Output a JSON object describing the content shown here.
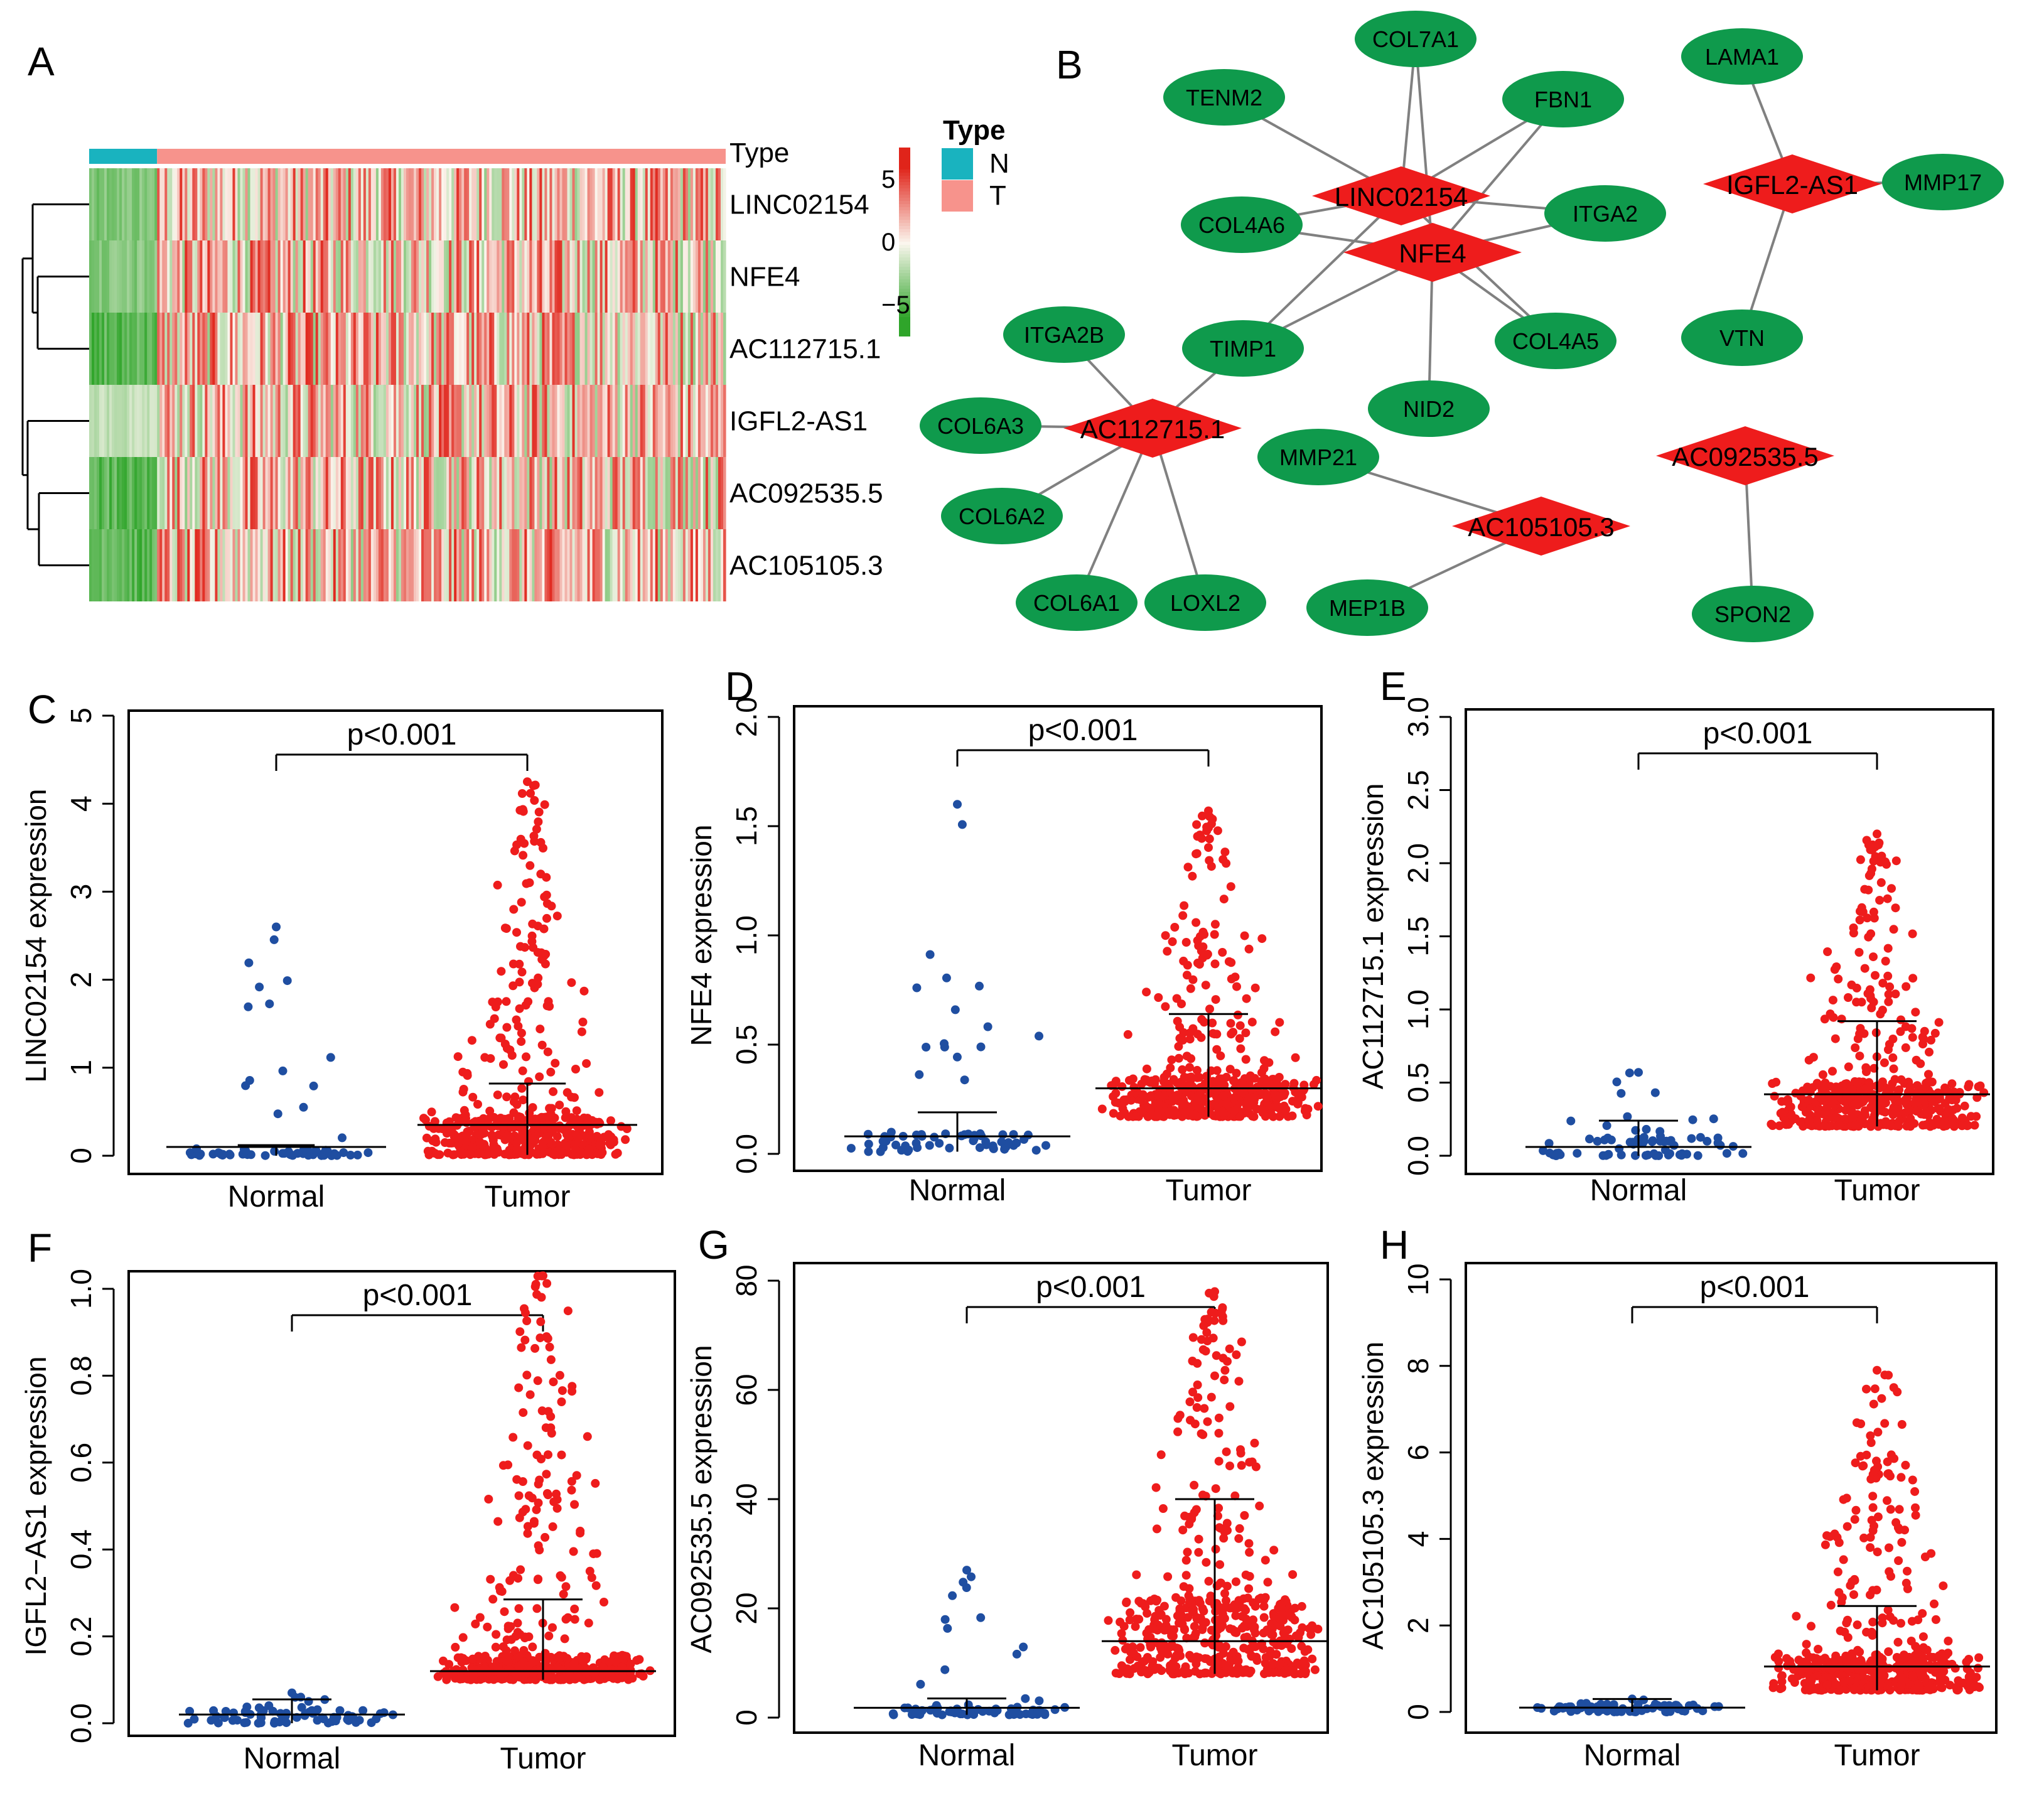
{
  "panel_letters": [
    "A",
    "B",
    "C",
    "D",
    "E",
    "F",
    "G",
    "H"
  ],
  "colors": {
    "normal": "#1f4ea1",
    "tumor": "#ee1c1c",
    "node_green": "#0f9a4c",
    "node_red": "#ee1c1c",
    "edge": "#808080",
    "heat_high": "#e0241a",
    "heat_mid": "#fbf6ee",
    "heat_low": "#2fa52a",
    "type_n": "#19b3bf",
    "type_t": "#f7938c"
  },
  "chart_data": [
    {
      "panel": "A",
      "type": "heatmap",
      "genes": [
        "LINC02154",
        "NFE4",
        "AC112715.1",
        "IGFL2-AS1",
        "AC092535.5",
        "AC105105.3"
      ],
      "annotation_label": "Type",
      "legend_title": "Type",
      "legend_items": [
        "N",
        "T"
      ],
      "colorbar_ticks": [
        "5",
        "0",
        "−5"
      ],
      "colorbar_values": [
        5,
        0,
        -5
      ],
      "n_normal": 27,
      "n_tumor": 226
    },
    {
      "panel": "B",
      "type": "network",
      "hubs": [
        "LINC02154",
        "NFE4",
        "IGFL2-AS1",
        "AC112715.1",
        "AC105105.3",
        "AC092535.5"
      ],
      "targets": [
        "COL7A1",
        "TENM2",
        "FBN1",
        "LAMA1",
        "COL4A6",
        "ITGA2",
        "MMP17",
        "ITGA2B",
        "TIMP1",
        "COL4A5",
        "VTN",
        "COL6A3",
        "NID2",
        "MMP21",
        "COL6A2",
        "COL6A1",
        "LOXL2",
        "MEP1B",
        "SPON2"
      ],
      "edges": [
        [
          "LINC02154",
          "COL7A1"
        ],
        [
          "LINC02154",
          "TENM2"
        ],
        [
          "LINC02154",
          "FBN1"
        ],
        [
          "LINC02154",
          "COL4A6"
        ],
        [
          "LINC02154",
          "ITGA2"
        ],
        [
          "LINC02154",
          "TIMP1"
        ],
        [
          "LINC02154",
          "COL4A5"
        ],
        [
          "NFE4",
          "COL7A1"
        ],
        [
          "NFE4",
          "FBN1"
        ],
        [
          "NFE4",
          "COL4A6"
        ],
        [
          "NFE4",
          "ITGA2"
        ],
        [
          "NFE4",
          "TIMP1"
        ],
        [
          "NFE4",
          "COL4A5"
        ],
        [
          "NFE4",
          "NID2"
        ],
        [
          "IGFL2-AS1",
          "LAMA1"
        ],
        [
          "IGFL2-AS1",
          "MMP17"
        ],
        [
          "IGFL2-AS1",
          "VTN"
        ],
        [
          "AC112715.1",
          "ITGA2B"
        ],
        [
          "AC112715.1",
          "TIMP1"
        ],
        [
          "AC112715.1",
          "COL6A3"
        ],
        [
          "AC112715.1",
          "COL6A2"
        ],
        [
          "AC112715.1",
          "COL6A1"
        ],
        [
          "AC112715.1",
          "LOXL2"
        ],
        [
          "AC105105.3",
          "MMP21"
        ],
        [
          "AC105105.3",
          "MEP1B"
        ],
        [
          "AC092535.5",
          "SPON2"
        ]
      ]
    },
    {
      "panel": "C",
      "type": "scatter",
      "ylabel": "LINC02154 expression",
      "ylim": [
        0,
        5
      ],
      "yticks": [
        0,
        1,
        2,
        3,
        4,
        5
      ],
      "categories": [
        "Normal",
        "Tumor"
      ],
      "pvalue": "p<0.001",
      "normal": {
        "max": 2.6,
        "q3": 0.12,
        "median": 0.04,
        "q1": 0.0,
        "mean": 0.1,
        "n": 70
      },
      "tumor": {
        "max": 4.25,
        "q3": 0.82,
        "median": 0.12,
        "q1": 0.01,
        "mean": 0.35,
        "n": 520
      }
    },
    {
      "panel": "D",
      "type": "scatter",
      "ylabel": "NFE4 expression",
      "ylim": [
        0,
        2
      ],
      "yticks": [
        0.0,
        0.5,
        1.0,
        1.5,
        2.0
      ],
      "categories": [
        "Normal",
        "Tumor"
      ],
      "pvalue": "p<0.001",
      "normal": {
        "max": 1.6,
        "q3": 0.19,
        "median": 0.06,
        "q1": 0.01,
        "mean": 0.08,
        "n": 70
      },
      "tumor": {
        "max": 1.57,
        "q3": 0.64,
        "median": 0.3,
        "q1": 0.17,
        "mean": 0.3,
        "n": 520
      }
    },
    {
      "panel": "E",
      "type": "scatter",
      "ylabel": "AC112715.1 expression",
      "ylim": [
        0,
        3
      ],
      "yticks": [
        0.0,
        0.5,
        1.0,
        1.5,
        2.0,
        2.5,
        3.0
      ],
      "categories": [
        "Normal",
        "Tumor"
      ],
      "pvalue": "p<0.001",
      "normal": {
        "max": 0.57,
        "q3": 0.24,
        "median": 0.1,
        "q1": 0.0,
        "mean": 0.06,
        "n": 70
      },
      "tumor": {
        "max": 2.2,
        "q3": 0.92,
        "median": 0.4,
        "q1": 0.2,
        "mean": 0.42,
        "n": 520
      }
    },
    {
      "panel": "F",
      "type": "scatter",
      "ylabel": "IGFL2−AS1 expression",
      "ylim": [
        0,
        1
      ],
      "yticks": [
        0.0,
        0.2,
        0.4,
        0.6,
        0.8,
        1.0
      ],
      "categories": [
        "Normal",
        "Tumor"
      ],
      "pvalue": "p<0.001",
      "normal": {
        "max": 0.07,
        "q3": 0.055,
        "median": 0.02,
        "q1": 0.0,
        "mean": 0.02,
        "n": 70
      },
      "tumor": {
        "max": 1.03,
        "q3": 0.285,
        "median": 0.12,
        "q1": 0.1,
        "mean": 0.12,
        "n": 520
      }
    },
    {
      "panel": "G",
      "type": "scatter",
      "ylabel": "AC092535.5 expression",
      "ylim": [
        0,
        80
      ],
      "yticks": [
        0,
        20,
        40,
        60,
        80
      ],
      "categories": [
        "Normal",
        "Tumor"
      ],
      "pvalue": "p<0.001",
      "normal": {
        "max": 27,
        "q3": 3.5,
        "median": 1.5,
        "q1": 0.5,
        "mean": 1.8,
        "n": 70
      },
      "tumor": {
        "max": 78,
        "q3": 40,
        "median": 18,
        "q1": 8,
        "mean": 14,
        "n": 520
      }
    },
    {
      "panel": "H",
      "type": "scatter",
      "ylabel": "AC105105.3 expression",
      "ylim": [
        0,
        10
      ],
      "yticks": [
        0,
        2,
        4,
        6,
        8,
        10
      ],
      "categories": [
        "Normal",
        "Tumor"
      ],
      "pvalue": "p<0.001",
      "normal": {
        "max": 0.3,
        "q3": 0.3,
        "median": 0.1,
        "q1": 0.0,
        "mean": 0.1,
        "n": 70
      },
      "tumor": {
        "max": 7.9,
        "q3": 2.45,
        "median": 1.1,
        "q1": 0.5,
        "mean": 1.05,
        "n": 520
      }
    }
  ]
}
